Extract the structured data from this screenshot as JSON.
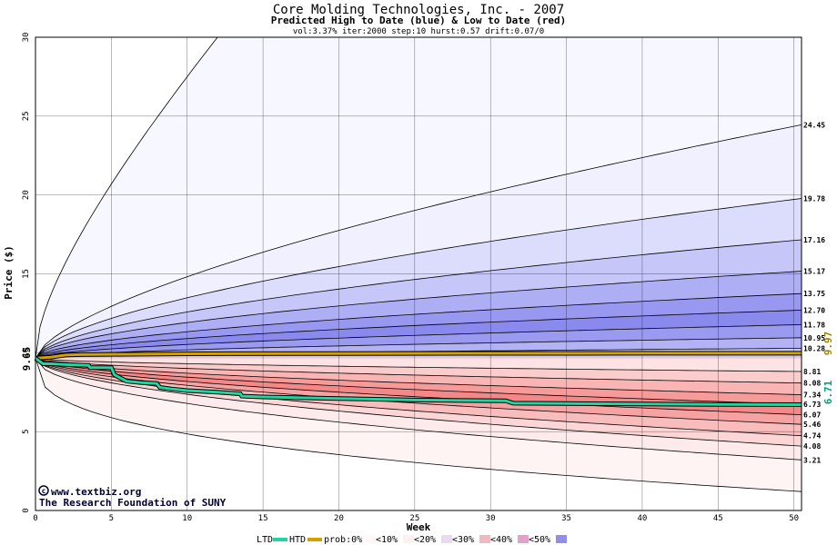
{
  "chart_data": {
    "type": "area",
    "title": "Core Molding Technologies, Inc. - 2007",
    "subtitle": "Predicted High to Date (blue) &  Low to Date (red)",
    "params": "vol:3.37% iter:2000 step:10 hurst:0.57 drift:0.07/0",
    "xlabel": "Week",
    "ylabel": "Price ($)",
    "xlim": [
      0,
      50.5
    ],
    "ylim": [
      0,
      30
    ],
    "x_ticks": [
      0,
      5,
      10,
      15,
      20,
      25,
      30,
      35,
      40,
      45,
      50
    ],
    "y_ticks": [
      0,
      5,
      10,
      15,
      20,
      25,
      30
    ],
    "start_price": 9.65,
    "start_price_label": "9.65",
    "htd_end_label": "9.97",
    "ltd_end_label": "6.71",
    "high_percentiles": [
      {
        "label": "24.45",
        "start": 9.65,
        "end": 24.45,
        "shape": 0.65,
        "fill": "#f0f0ff"
      },
      {
        "label": "19.78",
        "start": 9.65,
        "end": 19.78,
        "shape": 0.6,
        "fill": "#dcdcfc"
      },
      {
        "label": "17.16",
        "start": 9.65,
        "end": 17.16,
        "shape": 0.58,
        "fill": "#c6c6f8"
      },
      {
        "label": "15.17",
        "start": 9.65,
        "end": 15.17,
        "shape": 0.55,
        "fill": "#aeaef4"
      },
      {
        "label": "13.75",
        "start": 9.65,
        "end": 13.75,
        "shape": 0.55,
        "fill": "#9898f0"
      },
      {
        "label": "12.70",
        "start": 9.65,
        "end": 12.7,
        "shape": 0.55,
        "fill": "#8a8aee"
      },
      {
        "label": "11.78",
        "start": 9.65,
        "end": 11.78,
        "shape": 0.55,
        "fill": "#9a9af0"
      },
      {
        "label": "10.95",
        "start": 9.65,
        "end": 10.95,
        "shape": 0.55,
        "fill": "#b2b2f4"
      },
      {
        "label": "10.28",
        "start": 9.65,
        "end": 10.28,
        "shape": 0.55,
        "fill": "#cacaf8"
      }
    ],
    "high_max_curve": {
      "start": 9.65,
      "reach": 30,
      "reach_week": 12,
      "fill": "#f7f7ff"
    },
    "low_percentiles": [
      {
        "label": "8.81",
        "start": 9.65,
        "end": 8.81,
        "shape": 0.55,
        "fill": "#fde3e3"
      },
      {
        "label": "8.08",
        "start": 9.65,
        "end": 8.08,
        "shape": 0.55,
        "fill": "#fbcccc"
      },
      {
        "label": "7.34",
        "start": 9.65,
        "end": 7.34,
        "shape": 0.55,
        "fill": "#f9b4b4"
      },
      {
        "label": "6.73",
        "start": 9.65,
        "end": 6.73,
        "shape": 0.55,
        "fill": "#f79a9a"
      },
      {
        "label": "6.07",
        "start": 9.65,
        "end": 6.07,
        "shape": 0.55,
        "fill": "#f48888"
      },
      {
        "label": "5.46",
        "start": 9.65,
        "end": 5.46,
        "shape": 0.55,
        "fill": "#f7a2a2"
      },
      {
        "label": "4.74",
        "start": 9.65,
        "end": 4.74,
        "shape": 0.55,
        "fill": "#f9bcbc"
      },
      {
        "label": "4.08",
        "start": 9.65,
        "end": 4.08,
        "shape": 0.55,
        "fill": "#fcd6d6"
      },
      {
        "label": "3.21",
        "start": 9.65,
        "end": 3.21,
        "shape": 0.5,
        "fill": "#fdeaea"
      }
    ],
    "low_min_curve": {
      "start": 9.65,
      "end": 1.2,
      "fill": "#fff4f4"
    },
    "htd_series": {
      "name": "HTD",
      "color": "#d4a000",
      "points": [
        [
          0,
          9.65
        ],
        [
          1,
          9.72
        ],
        [
          2,
          9.85
        ],
        [
          3,
          9.88
        ],
        [
          5,
          9.9
        ],
        [
          10,
          9.93
        ],
        [
          20,
          9.95
        ],
        [
          30,
          9.96
        ],
        [
          40,
          9.97
        ],
        [
          50.5,
          9.97
        ]
      ]
    },
    "ltd_series": {
      "name": "LTD",
      "color": "#22d4a0",
      "points": [
        [
          0,
          9.65
        ],
        [
          0.5,
          9.3
        ],
        [
          1,
          9.3
        ],
        [
          2,
          9.25
        ],
        [
          3.5,
          9.2
        ],
        [
          3.6,
          9.05
        ],
        [
          5,
          9.05
        ],
        [
          5.2,
          8.6
        ],
        [
          6,
          8.2
        ],
        [
          7,
          8.1
        ],
        [
          8,
          8.05
        ],
        [
          8.2,
          7.8
        ],
        [
          9,
          7.7
        ],
        [
          10,
          7.6
        ],
        [
          12,
          7.5
        ],
        [
          13.5,
          7.4
        ],
        [
          13.6,
          7.25
        ],
        [
          15,
          7.2
        ],
        [
          20,
          7.1
        ],
        [
          25,
          7.0
        ],
        [
          31,
          6.95
        ],
        [
          31.5,
          6.8
        ],
        [
          35,
          6.78
        ],
        [
          40,
          6.75
        ],
        [
          45,
          6.72
        ],
        [
          50.5,
          6.71
        ]
      ]
    },
    "legend": {
      "ltd": "LTD",
      "htd": "HTD",
      "prob_prefix": "prob:0%",
      "items": [
        {
          "label": "<10%",
          "color": "#fff0f0"
        },
        {
          "label": "<20%",
          "color": "#ecd8f0"
        },
        {
          "label": "<30%",
          "color": "#f0b8c0"
        },
        {
          "label": "<40%",
          "color": "#e4a0c8"
        },
        {
          "label": "<50%",
          "color": "#9090e8"
        }
      ],
      "first_swatch_color": "#fff8f8"
    }
  },
  "credits": {
    "site": "www.textbiz.org",
    "org": "The Research Foundation of SUNY"
  }
}
